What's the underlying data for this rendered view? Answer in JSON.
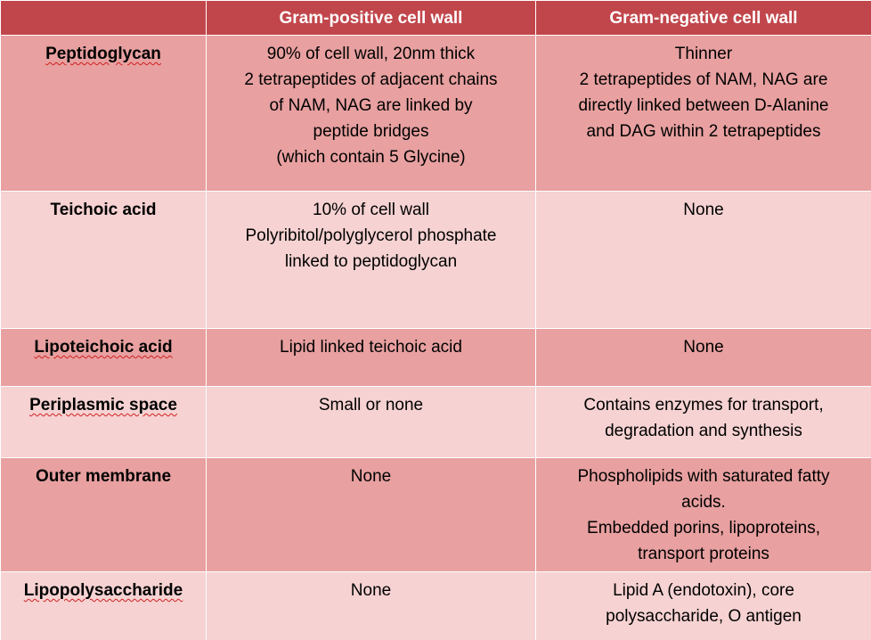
{
  "table": {
    "headers": [
      "",
      "Gram-positive cell wall",
      "Gram-negative cell wall"
    ],
    "rows": [
      {
        "feature": "Peptidoglycan",
        "positive": [
          "90% of cell wall, 20nm thick",
          "2 tetrapeptides of adjacent chains",
          "of NAM, NAG are linked by",
          "peptide bridges",
          "(which contain 5 Glycine)"
        ],
        "negative": [
          "Thinner",
          "2 tetrapeptides of NAM, NAG are",
          "directly linked between D-Alanine",
          "and DAG within 2 tetrapeptides"
        ]
      },
      {
        "feature": "Teichoic acid",
        "positive": [
          "10% of cell wall",
          "Polyribitol/polyglycerol phosphate",
          "linked to peptidoglycan"
        ],
        "negative": [
          "None"
        ]
      },
      {
        "feature": "Lipoteichoic acid",
        "positive": [
          "Lipid linked teichoic acid"
        ],
        "negative": [
          "None"
        ]
      },
      {
        "feature": "Periplasmic space",
        "positive": [
          "Small or none"
        ],
        "negative": [
          "Contains enzymes for transport,",
          "degradation and synthesis"
        ]
      },
      {
        "feature": "Outer membrane",
        "positive": [
          "None"
        ],
        "negative": [
          "Phospholipids with saturated fatty",
          "acids.",
          "Embedded porins, lipoproteins,",
          "transport proteins"
        ]
      },
      {
        "feature": "Lipopolysaccharide",
        "positive": [
          "None"
        ],
        "negative": [
          "Lipid  A (endotoxin), core",
          "polysaccharide, O antigen"
        ]
      }
    ]
  },
  "colors": {
    "header_bg": "#c1464b",
    "row_dark": "#e8a0a0",
    "row_light": "#f6d2d2",
    "spellcheck": "#d02020"
  }
}
